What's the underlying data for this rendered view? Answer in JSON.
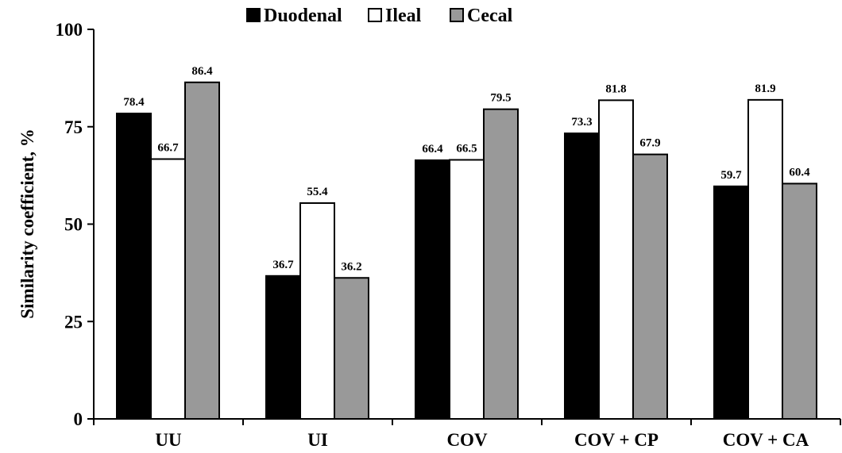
{
  "chart_data": {
    "type": "bar",
    "categories": [
      "UU",
      "UI",
      "COV",
      "COV + CP",
      "COV + CA"
    ],
    "series": [
      {
        "name": "Duodenal",
        "color": "#000000",
        "values": [
          78.4,
          36.7,
          66.4,
          73.3,
          59.7
        ]
      },
      {
        "name": "Ileal",
        "color": "#ffffff",
        "values": [
          66.7,
          55.4,
          66.5,
          81.8,
          81.9
        ]
      },
      {
        "name": "Cecal",
        "color": "#999999",
        "values": [
          86.4,
          36.2,
          79.5,
          67.9,
          60.4
        ]
      }
    ],
    "title": "",
    "xlabel": "",
    "ylabel": "Similarity coefficient, %",
    "ylim": [
      0,
      100
    ],
    "yticks": [
      0,
      25,
      50,
      75,
      100
    ],
    "grid": false,
    "legend_position": "top"
  }
}
